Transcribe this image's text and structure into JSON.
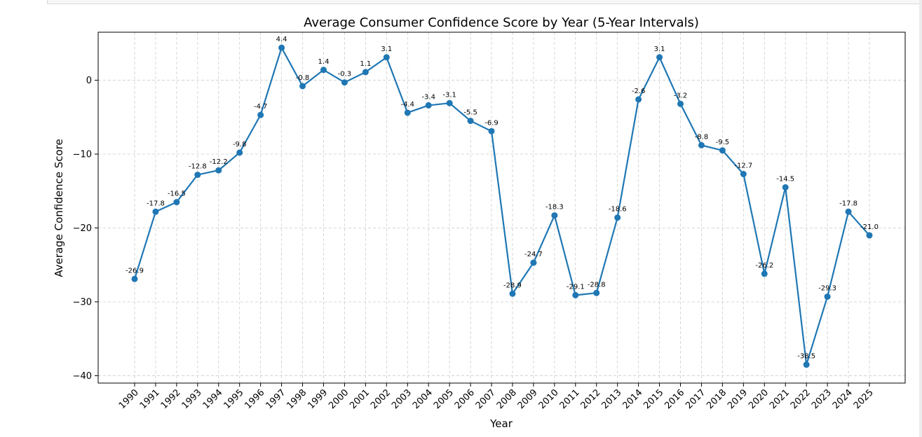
{
  "chart_data": {
    "type": "line",
    "title": "Average Consumer Confidence Score by Year (5-Year Intervals)",
    "xlabel": "Year",
    "ylabel": "Average Confidence Score",
    "ylim": [
      -41,
      6.5
    ],
    "yticks": [
      0,
      -10,
      -20,
      -30,
      -40
    ],
    "ytick_labels": [
      "0",
      "−10",
      "−20",
      "−30",
      "−40"
    ],
    "grid": true,
    "color": "#1f77b4",
    "x": [
      "1990",
      "1991",
      "1992",
      "1993",
      "1994",
      "1995",
      "1996",
      "1997",
      "1998",
      "1999",
      "2000",
      "2001",
      "2002",
      "2003",
      "2004",
      "2005",
      "2006",
      "2007",
      "2008",
      "2009",
      "2010",
      "2011",
      "2012",
      "2013",
      "2014",
      "2015",
      "2016",
      "2017",
      "2018",
      "2019",
      "2020",
      "2021",
      "2022",
      "2023",
      "2024",
      "2025"
    ],
    "values": [
      -26.9,
      -17.8,
      -16.5,
      -12.8,
      -12.2,
      -9.8,
      -4.7,
      4.4,
      -0.8,
      1.4,
      -0.3,
      1.1,
      3.1,
      -4.4,
      -3.4,
      -3.1,
      -5.5,
      -6.9,
      -28.9,
      -24.7,
      -18.3,
      -29.1,
      -28.8,
      -18.6,
      -2.6,
      3.1,
      -3.2,
      -8.8,
      -9.5,
      -12.7,
      -26.2,
      -14.5,
      -38.5,
      -29.3,
      -17.8,
      -21.0
    ],
    "data_labels": [
      "-26.9",
      "-17.8",
      "-16.5",
      "-12.8",
      "-12.2",
      "-9.8",
      "-4.7",
      "4.4",
      "-0.8",
      "1.4",
      "-0.3",
      "1.1",
      "3.1",
      "-4.4",
      "-3.4",
      "-3.1",
      "-5.5",
      "-6.9",
      "-28.9",
      "-24.7",
      "-18.3",
      "-29.1",
      "-28.8",
      "-18.6",
      "-2.6",
      "3.1",
      "-3.2",
      "-8.8",
      "-9.5",
      "-12.7",
      "-26.2",
      "-14.5",
      "-38.5",
      "-29.3",
      "-17.8",
      "-21.0"
    ]
  }
}
